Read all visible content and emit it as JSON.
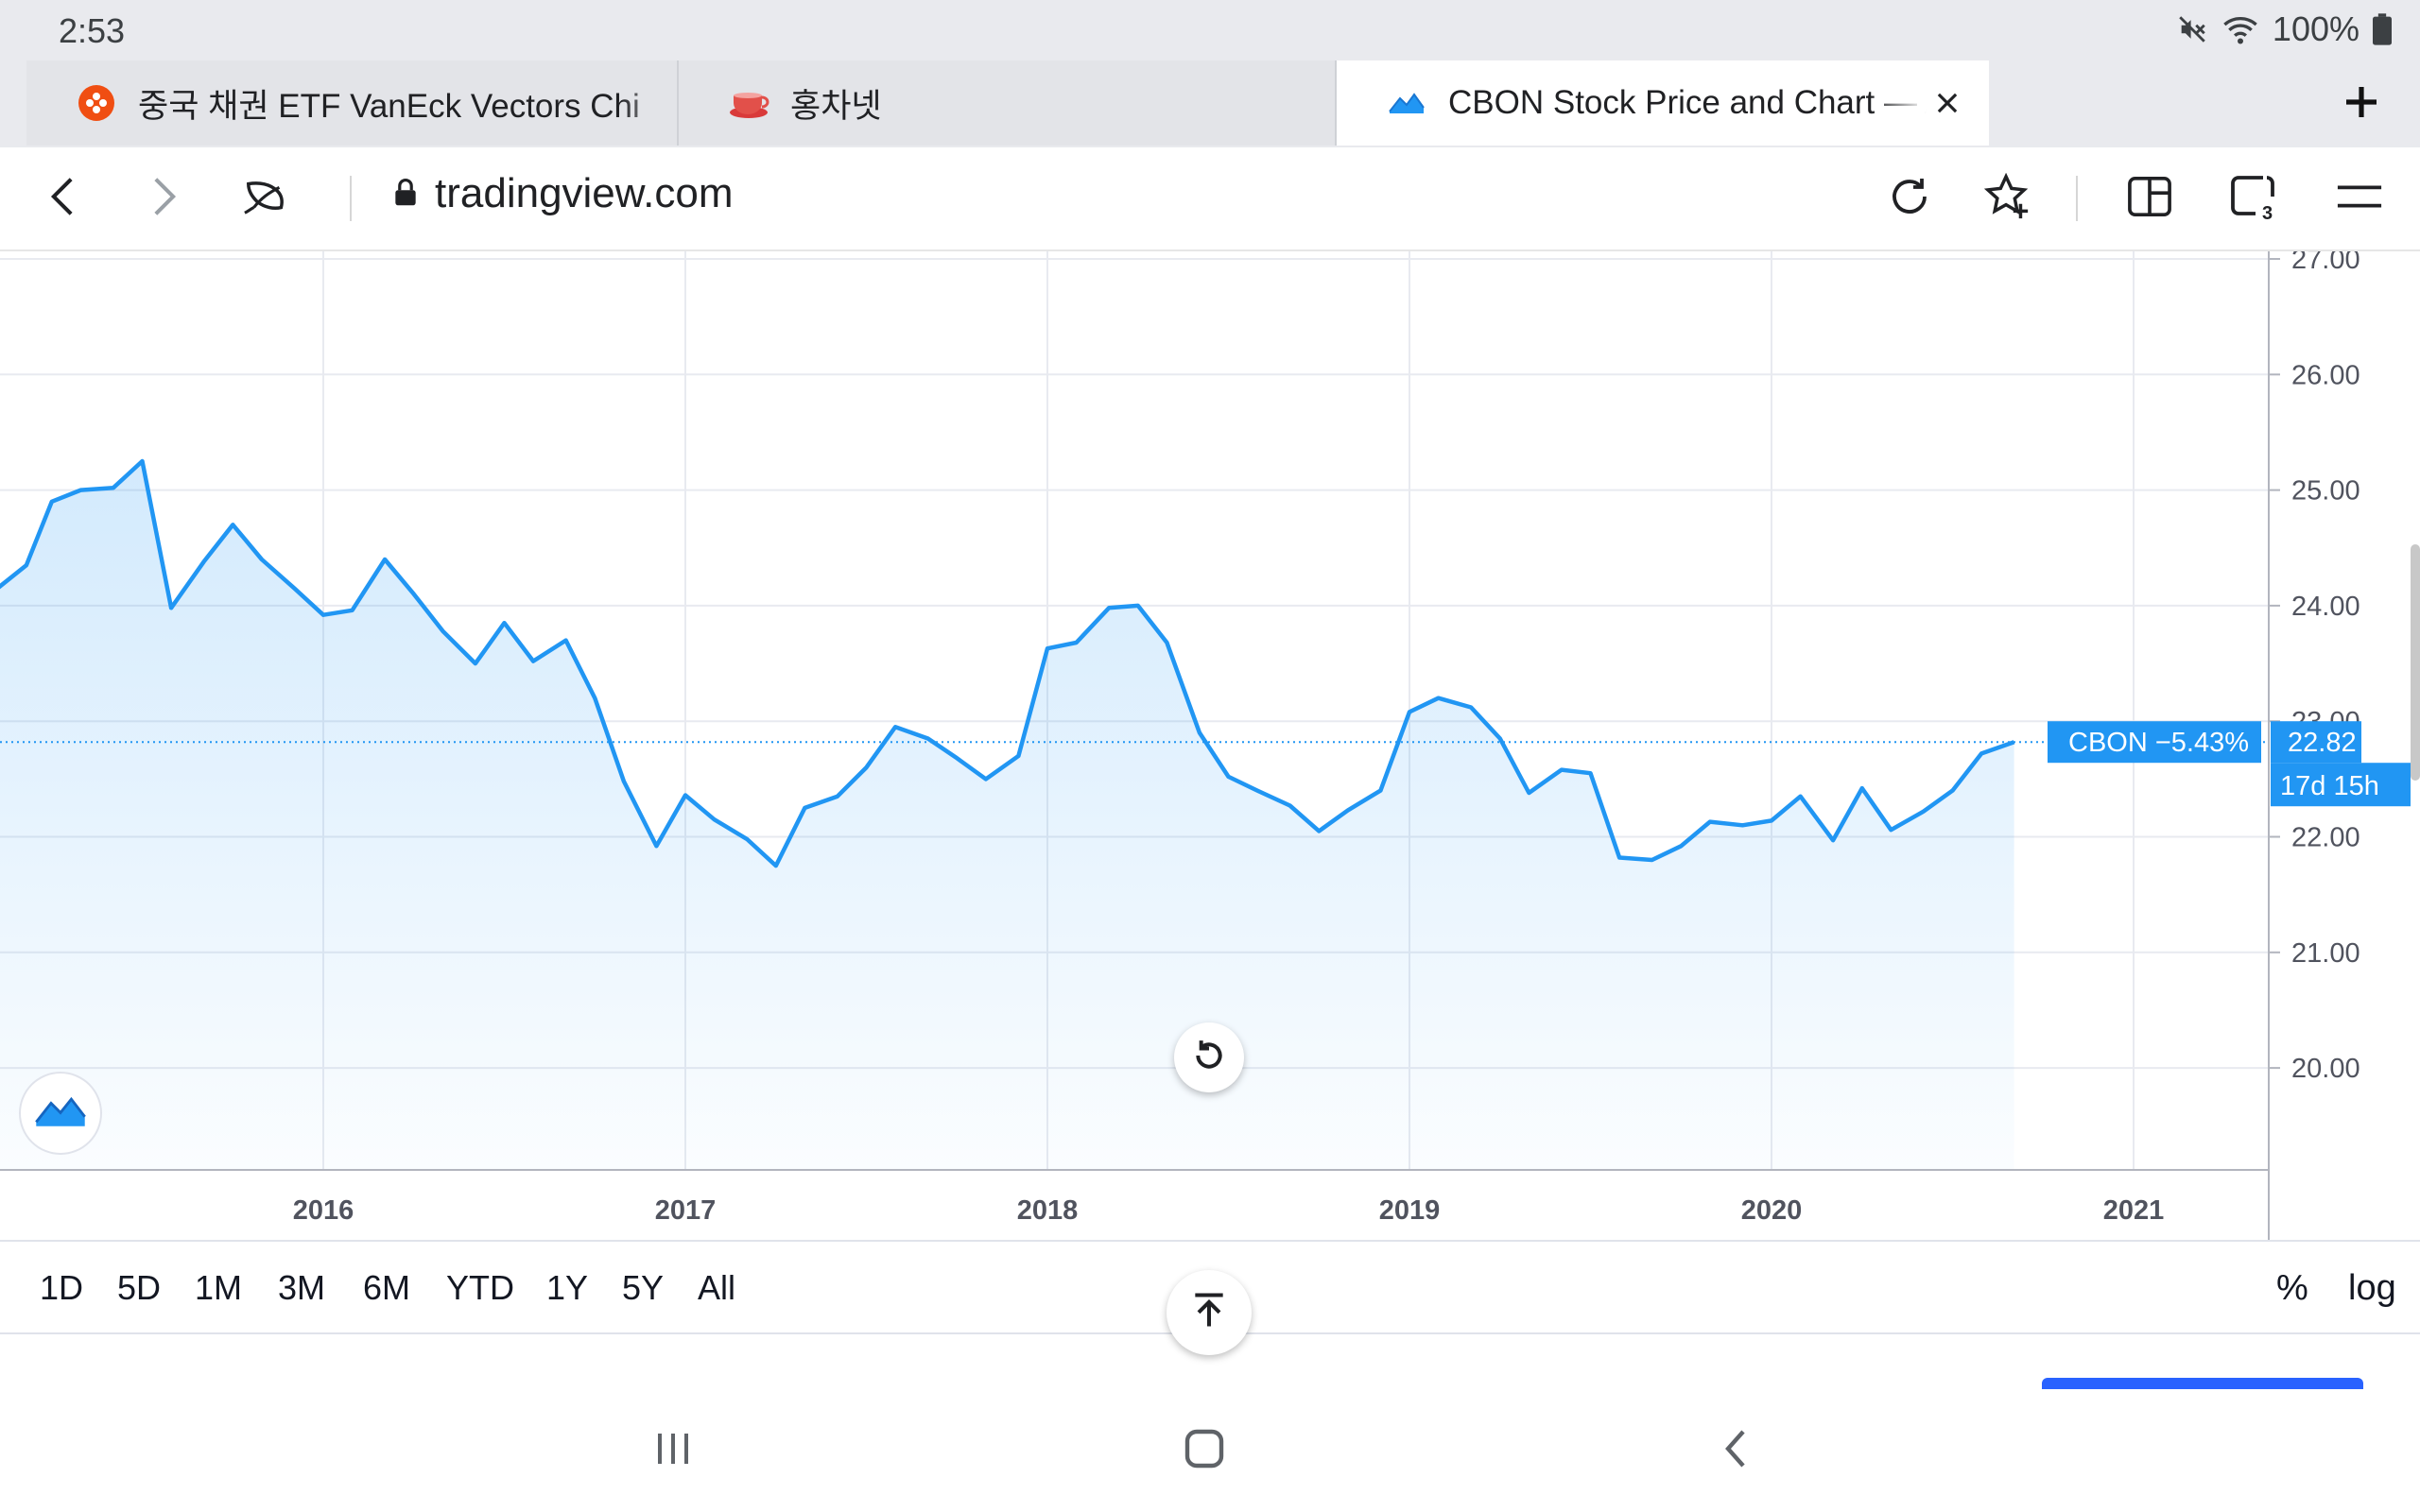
{
  "status": {
    "time": "2:53",
    "battery": "100%"
  },
  "tabs": [
    {
      "title": "중국 채권 ETF VanEck Vectors Chi",
      "favicon": "orange-flower-icon"
    },
    {
      "title": "홍차넷",
      "favicon": "teacup-icon"
    },
    {
      "title": "CBON Stock Price and Chart — AI",
      "favicon": "tradingview-icon",
      "active": true
    }
  ],
  "address": {
    "url": "tradingview.com"
  },
  "chart_data": {
    "type": "area",
    "symbol": "CBON",
    "last_label": "CBON −5.43%",
    "last_price": "22.82",
    "countdown": "17d 15h",
    "price_axis": [
      "27.00",
      "26.00",
      "25.00",
      "24.00",
      "23.00",
      "22.00",
      "21.00",
      "20.00"
    ],
    "time_axis": [
      "2016",
      "2017",
      "2018",
      "2019",
      "2020",
      "2021"
    ],
    "ylim": [
      19.1,
      27.0
    ],
    "xlim": [
      2015.1,
      2021.25
    ],
    "series": [
      {
        "values": [
          [
            2015.1,
            24.15
          ],
          [
            2015.18,
            24.35
          ],
          [
            2015.25,
            24.9
          ],
          [
            2015.33,
            25.0
          ],
          [
            2015.42,
            25.02
          ],
          [
            2015.5,
            25.25
          ],
          [
            2015.58,
            23.98
          ],
          [
            2015.67,
            24.38
          ],
          [
            2015.75,
            24.7
          ],
          [
            2015.83,
            24.4
          ],
          [
            2015.92,
            24.15
          ],
          [
            2016.0,
            23.92
          ],
          [
            2016.08,
            23.96
          ],
          [
            2016.17,
            24.4
          ],
          [
            2016.25,
            24.1
          ],
          [
            2016.33,
            23.78
          ],
          [
            2016.42,
            23.5
          ],
          [
            2016.5,
            23.85
          ],
          [
            2016.58,
            23.52
          ],
          [
            2016.67,
            23.7
          ],
          [
            2016.75,
            23.2
          ],
          [
            2016.83,
            22.48
          ],
          [
            2016.92,
            21.92
          ],
          [
            2017.0,
            22.36
          ],
          [
            2017.08,
            22.15
          ],
          [
            2017.17,
            21.98
          ],
          [
            2017.25,
            21.75
          ],
          [
            2017.33,
            22.25
          ],
          [
            2017.42,
            22.35
          ],
          [
            2017.5,
            22.6
          ],
          [
            2017.58,
            22.95
          ],
          [
            2017.67,
            22.85
          ],
          [
            2017.75,
            22.68
          ],
          [
            2017.83,
            22.5
          ],
          [
            2017.92,
            22.7
          ],
          [
            2018.0,
            23.63
          ],
          [
            2018.08,
            23.68
          ],
          [
            2018.17,
            23.98
          ],
          [
            2018.25,
            24.0
          ],
          [
            2018.33,
            23.68
          ],
          [
            2018.42,
            22.9
          ],
          [
            2018.5,
            22.52
          ],
          [
            2018.58,
            22.4
          ],
          [
            2018.67,
            22.27
          ],
          [
            2018.75,
            22.05
          ],
          [
            2018.83,
            22.23
          ],
          [
            2018.92,
            22.4
          ],
          [
            2019.0,
            23.08
          ],
          [
            2019.08,
            23.2
          ],
          [
            2019.17,
            23.12
          ],
          [
            2019.25,
            22.85
          ],
          [
            2019.33,
            22.38
          ],
          [
            2019.42,
            22.58
          ],
          [
            2019.5,
            22.55
          ],
          [
            2019.58,
            21.82
          ],
          [
            2019.67,
            21.8
          ],
          [
            2019.75,
            21.92
          ],
          [
            2019.83,
            22.13
          ],
          [
            2019.92,
            22.1
          ],
          [
            2020.0,
            22.14
          ],
          [
            2020.08,
            22.35
          ],
          [
            2020.17,
            21.97
          ],
          [
            2020.25,
            22.42
          ],
          [
            2020.33,
            22.06
          ],
          [
            2020.42,
            22.22
          ],
          [
            2020.5,
            22.4
          ],
          [
            2020.58,
            22.72
          ],
          [
            2020.67,
            22.82
          ]
        ]
      }
    ],
    "colors": {
      "line": "#2196f3",
      "label_bg": "#2196f3",
      "grid": "#e8eaf0"
    },
    "grid": true
  },
  "ranges": [
    "1D",
    "5D",
    "1M",
    "3M",
    "6M",
    "YTD",
    "1Y",
    "5Y",
    "All"
  ],
  "scale": {
    "percent": "%",
    "log": "log"
  }
}
